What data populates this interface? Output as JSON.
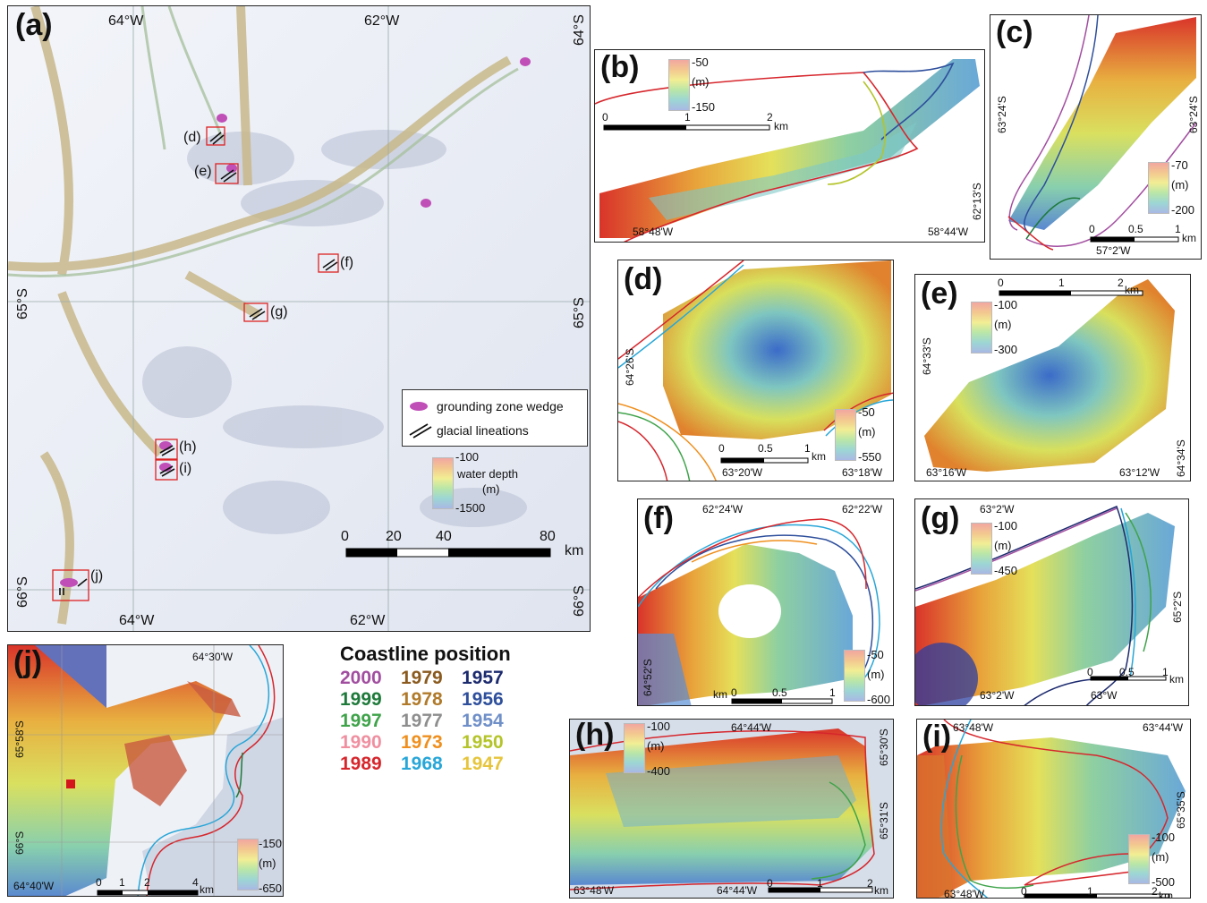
{
  "panels": {
    "a": {
      "label": "(a)",
      "lon_top": [
        "64°W",
        "62°W"
      ],
      "lon_bottom": [
        "64°W",
        "62°W"
      ],
      "lat_right": [
        "64°S",
        "65°S",
        "66°S"
      ],
      "lat_left": [
        "65°S",
        "66°S"
      ],
      "sites": [
        "(d)",
        "(e)",
        "(f)",
        "(g)",
        "(h)",
        "(i)",
        "(j)"
      ],
      "legend": {
        "gzw": "grounding zone wedge",
        "lineations": "glacial lineations"
      },
      "colorbar": {
        "top": "-100",
        "title": "water depth",
        "unit": "(m)",
        "bottom": "-1500"
      },
      "scale": {
        "ticks": [
          "0",
          "20",
          "40",
          "80"
        ],
        "unit": "km"
      }
    },
    "b": {
      "label": "(b)",
      "cb_top": "-50",
      "cb_unit": "(m)",
      "cb_bottom": "-150",
      "scale_ticks": [
        "0",
        "1",
        "2"
      ],
      "scale_unit": "km",
      "lon": [
        "58°48'W",
        "58°44'W"
      ],
      "lat": "62°13'S"
    },
    "c": {
      "label": "(c)",
      "cb_top": "-70",
      "cb_unit": "(m)",
      "cb_bottom": "-200",
      "scale_ticks": [
        "0",
        "0.5",
        "1"
      ],
      "scale_unit": "km",
      "lon": "57°2'W",
      "lat_left": "63°24'S",
      "lat_right": "63°24'S"
    },
    "d": {
      "label": "(d)",
      "cb_top": "-50",
      "cb_unit": "(m)",
      "cb_bottom": "-550",
      "scale_ticks": [
        "0",
        "0.5",
        "1"
      ],
      "scale_unit": "km",
      "lon": [
        "63°20'W",
        "63°18'W"
      ],
      "lat": "64°26'S"
    },
    "e": {
      "label": "(e)",
      "cb_top": "-100",
      "cb_unit": "(m)",
      "cb_bottom": "-300",
      "scale_ticks": [
        "0",
        "1",
        "2"
      ],
      "scale_unit": "km",
      "lon": [
        "63°16'W",
        "63°12'W"
      ],
      "lat_left": "64°33'S",
      "lat_right": "64°34'S"
    },
    "f": {
      "label": "(f)",
      "cb_top": "-50",
      "cb_unit": "(m)",
      "cb_bottom": "-600",
      "scale_ticks": [
        "0",
        "0.5",
        "1"
      ],
      "scale_unit": "km",
      "lon": [
        "62°24'W",
        "62°22'W"
      ],
      "lat": "64°52'S"
    },
    "g": {
      "label": "(g)",
      "cb_top": "-100",
      "cb_unit": "(m)",
      "cb_bottom": "-450",
      "scale_ticks": [
        "0",
        "0.5",
        "1"
      ],
      "scale_unit": "km",
      "lon_top": "63°2'W",
      "lon_bottom": [
        "63°2'W",
        "63°W"
      ],
      "lat": "65°2'S"
    },
    "h": {
      "label": "(h)",
      "cb_top": "-100",
      "cb_unit": "(m)",
      "cb_bottom": "-400",
      "scale_ticks": [
        "0",
        "1",
        "2"
      ],
      "scale_unit": "km",
      "lon_top": "64°44'W",
      "lon_bottom": [
        "63°48'W",
        "64°44'W"
      ],
      "lat": [
        "65°30'S",
        "65°31'S"
      ]
    },
    "i": {
      "label": "(i)",
      "cb_top": "-100",
      "cb_unit": "(m)",
      "cb_bottom": "-500",
      "scale_ticks": [
        "0",
        "1",
        "2"
      ],
      "scale_unit": "km",
      "lon_top": [
        "63°48'W",
        "63°44'W"
      ],
      "lon_bottom": "63°48'W",
      "lat": "65°35'S"
    },
    "j": {
      "label": "(j)",
      "cb_top": "-150",
      "cb_unit": "(m)",
      "cb_bottom": "-650",
      "scale_ticks": [
        "0",
        "1",
        "2",
        "4"
      ],
      "scale_unit": "km",
      "lon": [
        "64°30'W",
        "64°40'W"
      ],
      "lat": [
        "65°58'S",
        "66°S"
      ]
    }
  },
  "coastline": {
    "title": "Coastline position",
    "years": [
      {
        "year": "2000",
        "color": "#a24ea0"
      },
      {
        "year": "1999",
        "color": "#1e7a3a"
      },
      {
        "year": "1997",
        "color": "#3fa34a"
      },
      {
        "year": "1990",
        "color": "#ef8fa0"
      },
      {
        "year": "1989",
        "color": "#d6262c"
      },
      {
        "year": "1979",
        "color": "#8a5a1e"
      },
      {
        "year": "1978",
        "color": "#b07a2a"
      },
      {
        "year": "1977",
        "color": "#8e8e8e"
      },
      {
        "year": "1973",
        "color": "#ef8f1e"
      },
      {
        "year": "1968",
        "color": "#27a6d8"
      },
      {
        "year": "1957",
        "color": "#1c2a6e"
      },
      {
        "year": "1956",
        "color": "#2e4f9c"
      },
      {
        "year": "1954",
        "color": "#6f8fc8"
      },
      {
        "year": "1950",
        "color": "#b4c42a"
      },
      {
        "year": "1947",
        "color": "#e6c53c"
      }
    ]
  }
}
